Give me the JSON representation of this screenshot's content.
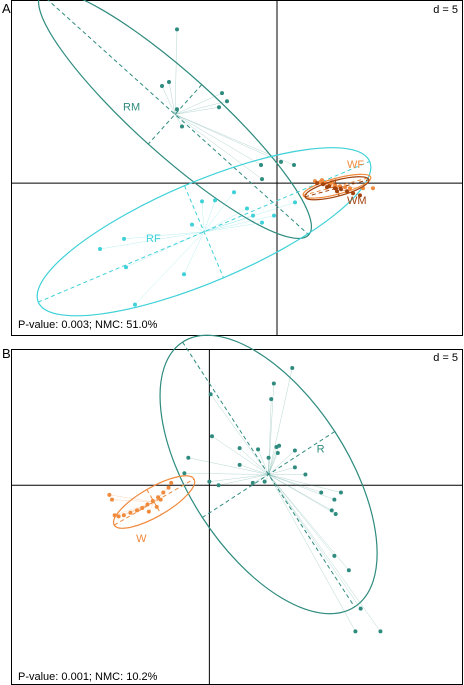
{
  "colors": {
    "teal": "#2e8b7e",
    "cyan": "#3fd1d8",
    "orange": "#f08a3c",
    "brown": "#a2420f",
    "frame": "#000000",
    "dashes": "#2e8b7e"
  },
  "chart_data": [
    {
      "panel": "A",
      "type": "scatter",
      "scale_label": "d = 5",
      "stats": "P-value: 0.003; NMC: 51.0%",
      "xlim": [
        -26.5,
        18.5
      ],
      "ylim": [
        -15,
        18
      ],
      "groups": [
        {
          "name": "RM",
          "color": "#2e8b7e",
          "ellipse": {
            "cx": -10.2,
            "cy": 6.8,
            "rx": 18.0,
            "ry": 4.0,
            "angle_deg": -42
          },
          "points": [
            [
              -10.0,
              15.2
            ],
            [
              -10.8,
              10.0
            ],
            [
              -11.5,
              9.6
            ],
            [
              -10.0,
              7.3
            ],
            [
              -5.5,
              8.9
            ],
            [
              -5.8,
              7.5
            ],
            [
              -5.0,
              8.1
            ],
            [
              -9.5,
              5.6
            ],
            [
              -1.6,
              1.8
            ],
            [
              0.4,
              2.1
            ],
            [
              1.7,
              1.8
            ],
            [
              -1.5,
              0.4
            ]
          ]
        },
        {
          "name": "RF",
          "color": "#3fd1d8",
          "ellipse": {
            "cx": -7.3,
            "cy": -4.8,
            "rx": 18.0,
            "ry": 5.0,
            "angle_deg": 23
          },
          "points": [
            [
              -4.3,
              -0.9
            ],
            [
              -6.2,
              -1.7
            ],
            [
              -7.5,
              -1.8
            ],
            [
              -3.0,
              -2.5
            ],
            [
              -2.4,
              -3.2
            ],
            [
              -0.3,
              -3.2
            ],
            [
              -1.5,
              -3.9
            ],
            [
              -8.5,
              -4.1
            ],
            [
              -15.3,
              -5.5
            ],
            [
              -17.7,
              -6.5
            ],
            [
              -15.1,
              -8.3
            ],
            [
              -9.3,
              -9.0
            ],
            [
              -14.2,
              -12.0
            ],
            [
              1.8,
              -1.9
            ]
          ]
        },
        {
          "name": "WF",
          "color": "#f08a3c",
          "ellipse": {
            "cx": 6.0,
            "cy": -0.3,
            "rx": 3.5,
            "ry": 0.8,
            "angle_deg": 15
          },
          "points": [
            [
              3.8,
              0.2
            ],
            [
              4.3,
              0.1
            ],
            [
              4.8,
              0.0
            ],
            [
              5.3,
              -0.1
            ],
            [
              5.8,
              -0.2
            ],
            [
              6.3,
              -0.3
            ],
            [
              6.8,
              -0.4
            ],
            [
              7.3,
              -0.5
            ],
            [
              8.6,
              -0.5
            ],
            [
              9.6,
              -0.5
            ],
            [
              4.5,
              0.3
            ],
            [
              5.5,
              0.1
            ]
          ]
        },
        {
          "name": "WM",
          "color": "#a2420f",
          "ellipse": {
            "cx": 6.0,
            "cy": -0.5,
            "rx": 3.3,
            "ry": 0.8,
            "angle_deg": 15
          },
          "points": [
            [
              4.0,
              0.0
            ],
            [
              4.6,
              -0.1
            ],
            [
              5.2,
              -0.3
            ],
            [
              5.8,
              -0.5
            ],
            [
              6.4,
              -0.6
            ],
            [
              7.0,
              -0.8
            ],
            [
              7.6,
              -1.0
            ],
            [
              8.3,
              -1.2
            ],
            [
              5.0,
              -0.4
            ],
            [
              6.0,
              -0.8
            ]
          ]
        }
      ]
    },
    {
      "panel": "B",
      "type": "scatter",
      "scale_label": "d = 5",
      "stats": "P-value: 0.001; NMC: 10.2%",
      "xlim": [
        -15.0,
        19.2
      ],
      "ylim": [
        -16.6,
        11.3
      ],
      "groups": [
        {
          "name": "R",
          "color": "#2e8b7e",
          "ellipse": {
            "cx": 4.5,
            "cy": 0.9,
            "rx": 12.0,
            "ry": 6.0,
            "angle_deg": -57
          },
          "points": [
            [
              6.3,
              9.8
            ],
            [
              4.9,
              8.5
            ],
            [
              4.7,
              7.2
            ],
            [
              0.1,
              7.6
            ],
            [
              0.2,
              4.1
            ],
            [
              2.3,
              3.1
            ],
            [
              3.7,
              3.0
            ],
            [
              5.1,
              3.2
            ],
            [
              5.2,
              2.7
            ],
            [
              6.5,
              2.9
            ],
            [
              5.3,
              3.3
            ],
            [
              4.5,
              2.3
            ],
            [
              2.3,
              1.7
            ],
            [
              -1.6,
              2.3
            ],
            [
              -1.9,
              1.0
            ],
            [
              0.0,
              0.3
            ],
            [
              0.7,
              0.0
            ],
            [
              3.3,
              0.2
            ],
            [
              4.2,
              0.3
            ],
            [
              6.5,
              1.5
            ],
            [
              7.3,
              0.9
            ],
            [
              8.5,
              -0.6
            ],
            [
              10.0,
              -0.6
            ],
            [
              9.5,
              -1.2
            ],
            [
              9.6,
              -2.4
            ],
            [
              9.5,
              -5.9
            ],
            [
              10.6,
              -7.1
            ],
            [
              9.3,
              -2.1
            ],
            [
              11.5,
              -10.3
            ],
            [
              11.1,
              -12.2
            ],
            [
              13.0,
              -12.2
            ]
          ]
        },
        {
          "name": "W",
          "color": "#f08a3c",
          "ellipse": {
            "cx": -4.2,
            "cy": -1.4,
            "rx": 3.5,
            "ry": 1.1,
            "angle_deg": 30
          },
          "points": [
            [
              -2.9,
              0.2
            ],
            [
              -3.1,
              -0.2
            ],
            [
              -3.5,
              -0.6
            ],
            [
              -3.9,
              -1.0
            ],
            [
              -4.3,
              -1.3
            ],
            [
              -4.7,
              -1.6
            ],
            [
              -5.1,
              -1.9
            ],
            [
              -5.5,
              -2.1
            ],
            [
              -6.0,
              -2.3
            ],
            [
              -6.5,
              -2.5
            ],
            [
              -6.9,
              -2.6
            ],
            [
              -7.4,
              -1.2
            ],
            [
              -7.6,
              -0.8
            ],
            [
              -7.2,
              -2.5
            ],
            [
              -3.7,
              -1.2
            ],
            [
              -4.0,
              -1.8
            ],
            [
              -4.6,
              -2.2
            ]
          ]
        }
      ]
    }
  ]
}
